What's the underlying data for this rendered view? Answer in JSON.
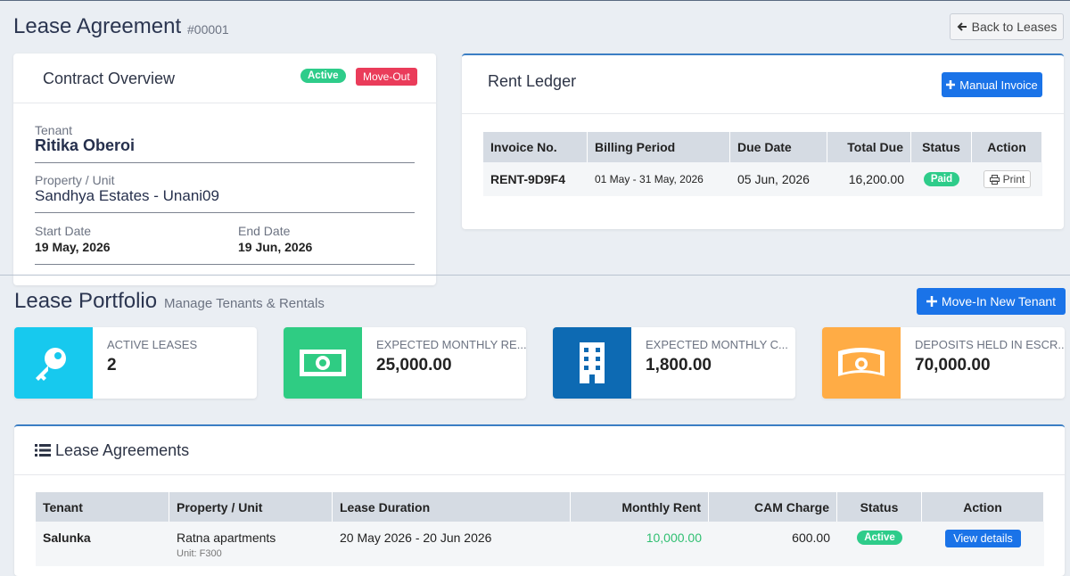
{
  "header": {
    "title": "Lease Agreement",
    "id": "#00001",
    "back_button": "Back to Leases"
  },
  "contract": {
    "title": "Contract Overview",
    "badges": [
      "Active",
      "Move-Out"
    ],
    "tenant": {
      "label": "Tenant",
      "value": "Ritika Oberoi"
    },
    "property": {
      "label": "Property / Unit",
      "value": "Sandhya Estates - Unani09"
    },
    "start": {
      "label": "Start Date",
      "value": "19 May, 2026"
    },
    "end": {
      "label": "End Date",
      "value": "19 Jun, 2026"
    }
  },
  "ledger": {
    "title": "Rent Ledger",
    "button": "Manual Invoice",
    "columns": [
      "Invoice No.",
      "Billing Period",
      "Due Date",
      "Total Due",
      "Status",
      "Action"
    ],
    "rows": [
      [
        "RENT-9D9F4",
        "01 May - 31 May, 2026",
        "05 Jun, 2026",
        "16,200.00",
        "Paid",
        "Print"
      ]
    ]
  },
  "portfolio": {
    "title": "Lease Portfolio",
    "subtitle": "Manage Tenants & Rentals",
    "button": "Move-In New Tenant",
    "stats": [
      {
        "label": "ACTIVE LEASES",
        "value": "2"
      },
      {
        "label": "EXPECTED MONTHLY RE...",
        "value": "25,000.00"
      },
      {
        "label": "EXPECTED MONTHLY C...",
        "value": "1,800.00"
      },
      {
        "label": "DEPOSITS HELD IN ESCR...",
        "value": "70,000.00"
      }
    ]
  },
  "agreements": {
    "title": "Lease Agreements",
    "columns": [
      "Tenant",
      "Property / Unit",
      "Lease Duration",
      "Monthly Rent",
      "CAM Charge",
      "Status",
      "Action"
    ],
    "rows": [
      {
        "tenant": "Salunka",
        "property": "Ratna apartments",
        "unit": "Unit: F300",
        "duration": "20 May 2026 - 20 Jun 2026",
        "rent": "10,000.00",
        "cam": "600.00",
        "status": "Active",
        "action": "View details"
      }
    ]
  }
}
